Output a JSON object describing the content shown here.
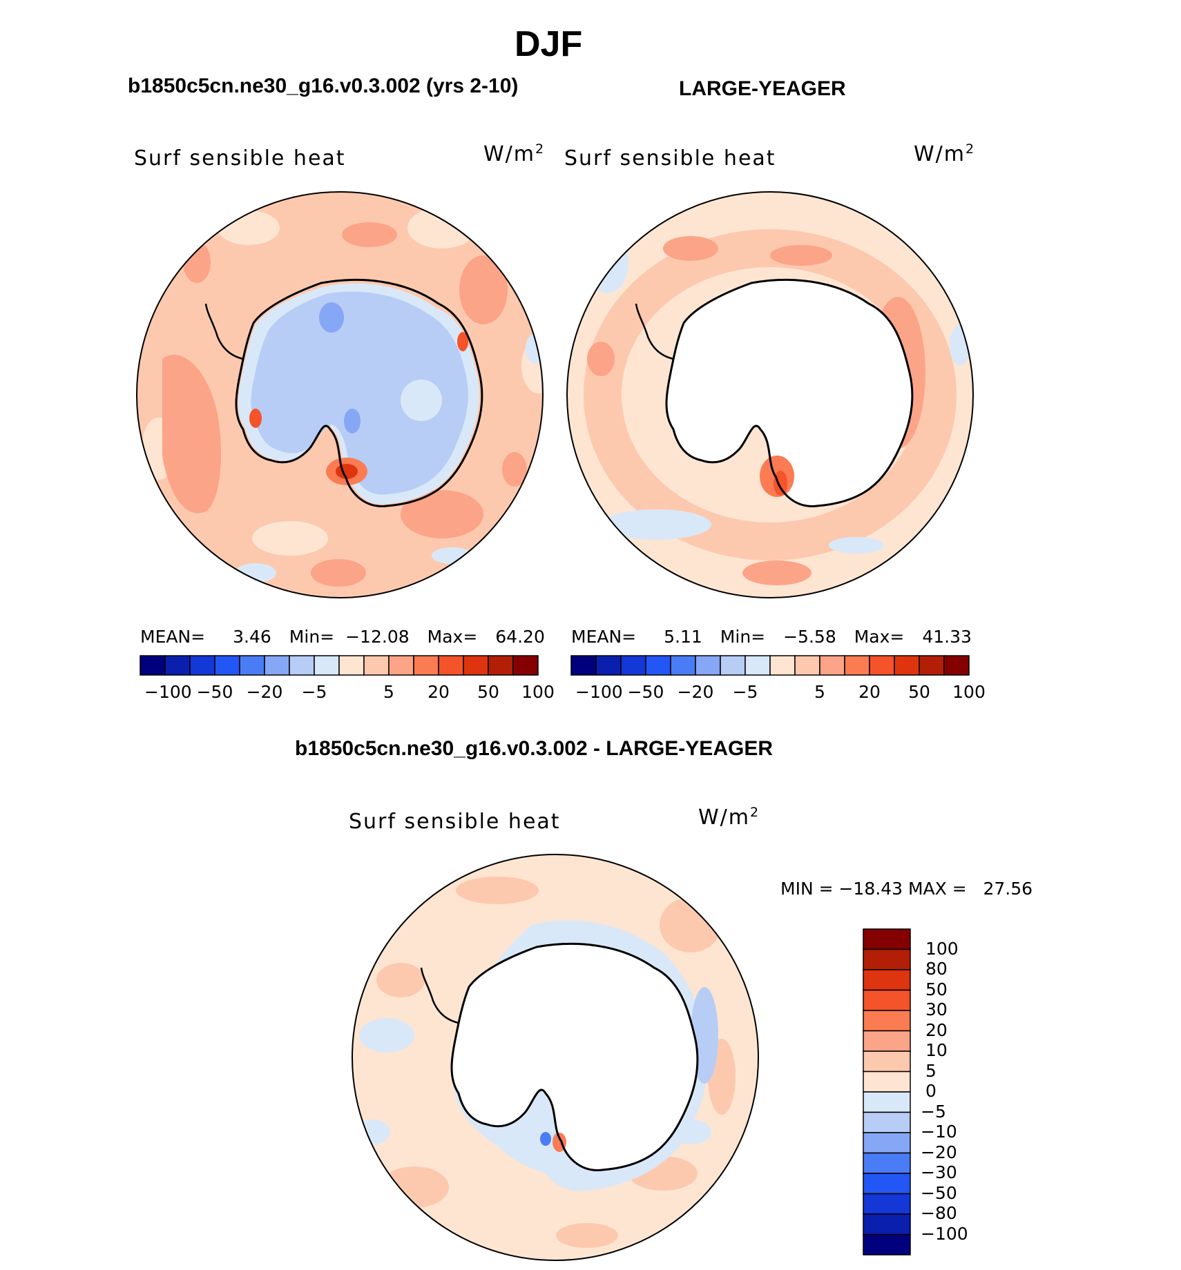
{
  "season": "DJF",
  "panels": [
    {
      "id": "case",
      "case_title": "b1850c5cn.ne30_g16.v0.3.002 (yrs 2-10)",
      "variable": "Surf sensible heat",
      "units": "W/m",
      "units_exp": "2",
      "stats": {
        "mean_label": "MEAN=",
        "mean": "3.46",
        "min_label": "Min=",
        "min": "−12.08",
        "max_label": "Max=",
        "max": "64.20"
      }
    },
    {
      "id": "obs",
      "case_title": "LARGE-YEAGER",
      "variable": "Surf sensible heat",
      "units": "W/m",
      "units_exp": "2",
      "stats": {
        "mean_label": "MEAN=",
        "mean": "5.11",
        "min_label": "Min=",
        "min": "−5.58",
        "max_label": "Max=",
        "max": "41.33"
      }
    }
  ],
  "diff": {
    "title": "b1850c5cn.ne30_g16.v0.3.002 - LARGE-YEAGER",
    "variable": "Surf sensible heat",
    "units": "W/m",
    "units_exp": "2",
    "minmax_text": "MIN = −18.43 MAX =   27.56"
  },
  "horiz_colorbar": {
    "colors": [
      "#00007f",
      "#0a1fae",
      "#1437d7",
      "#2257f5",
      "#4a7cf5",
      "#86a6f6",
      "#b7cdf6",
      "#d9e8f8",
      "#fde5d2",
      "#fdc9ae",
      "#fca488",
      "#fb7b53",
      "#f5532a",
      "#de3410",
      "#b21e06",
      "#850000"
    ],
    "tick_labels": [
      "−100",
      "−50",
      "−20",
      "−5",
      "5",
      "20",
      "50",
      "100"
    ]
  },
  "vert_colorbar": {
    "colors": [
      "#850000",
      "#b21e06",
      "#de3410",
      "#f5532a",
      "#fb7b53",
      "#fca488",
      "#fdc9ae",
      "#fde5d2",
      "#d9e8f8",
      "#b7cdf6",
      "#86a6f6",
      "#4a7cf5",
      "#2257f5",
      "#1437d7",
      "#0a1fae",
      "#00007f"
    ],
    "tick_labels": [
      "100",
      "80",
      "50",
      "30",
      "20",
      "10",
      "5",
      "0",
      "−5",
      "−10",
      "−20",
      "−30",
      "−50",
      "−80",
      "−100"
    ]
  },
  "colors": {
    "land": "#ffffff",
    "coast": "#000000",
    "ocean_light_pos": "#fde5d2",
    "ocean_mid_pos": "#fdc9ae",
    "ocean_pos": "#fca488",
    "ocean_strong_pos": "#fb7b53",
    "ocean_very_strong": "#f5532a",
    "neg_light": "#d9e8f8",
    "neg_mid": "#b7cdf6",
    "neg_strong": "#86a6f6"
  }
}
